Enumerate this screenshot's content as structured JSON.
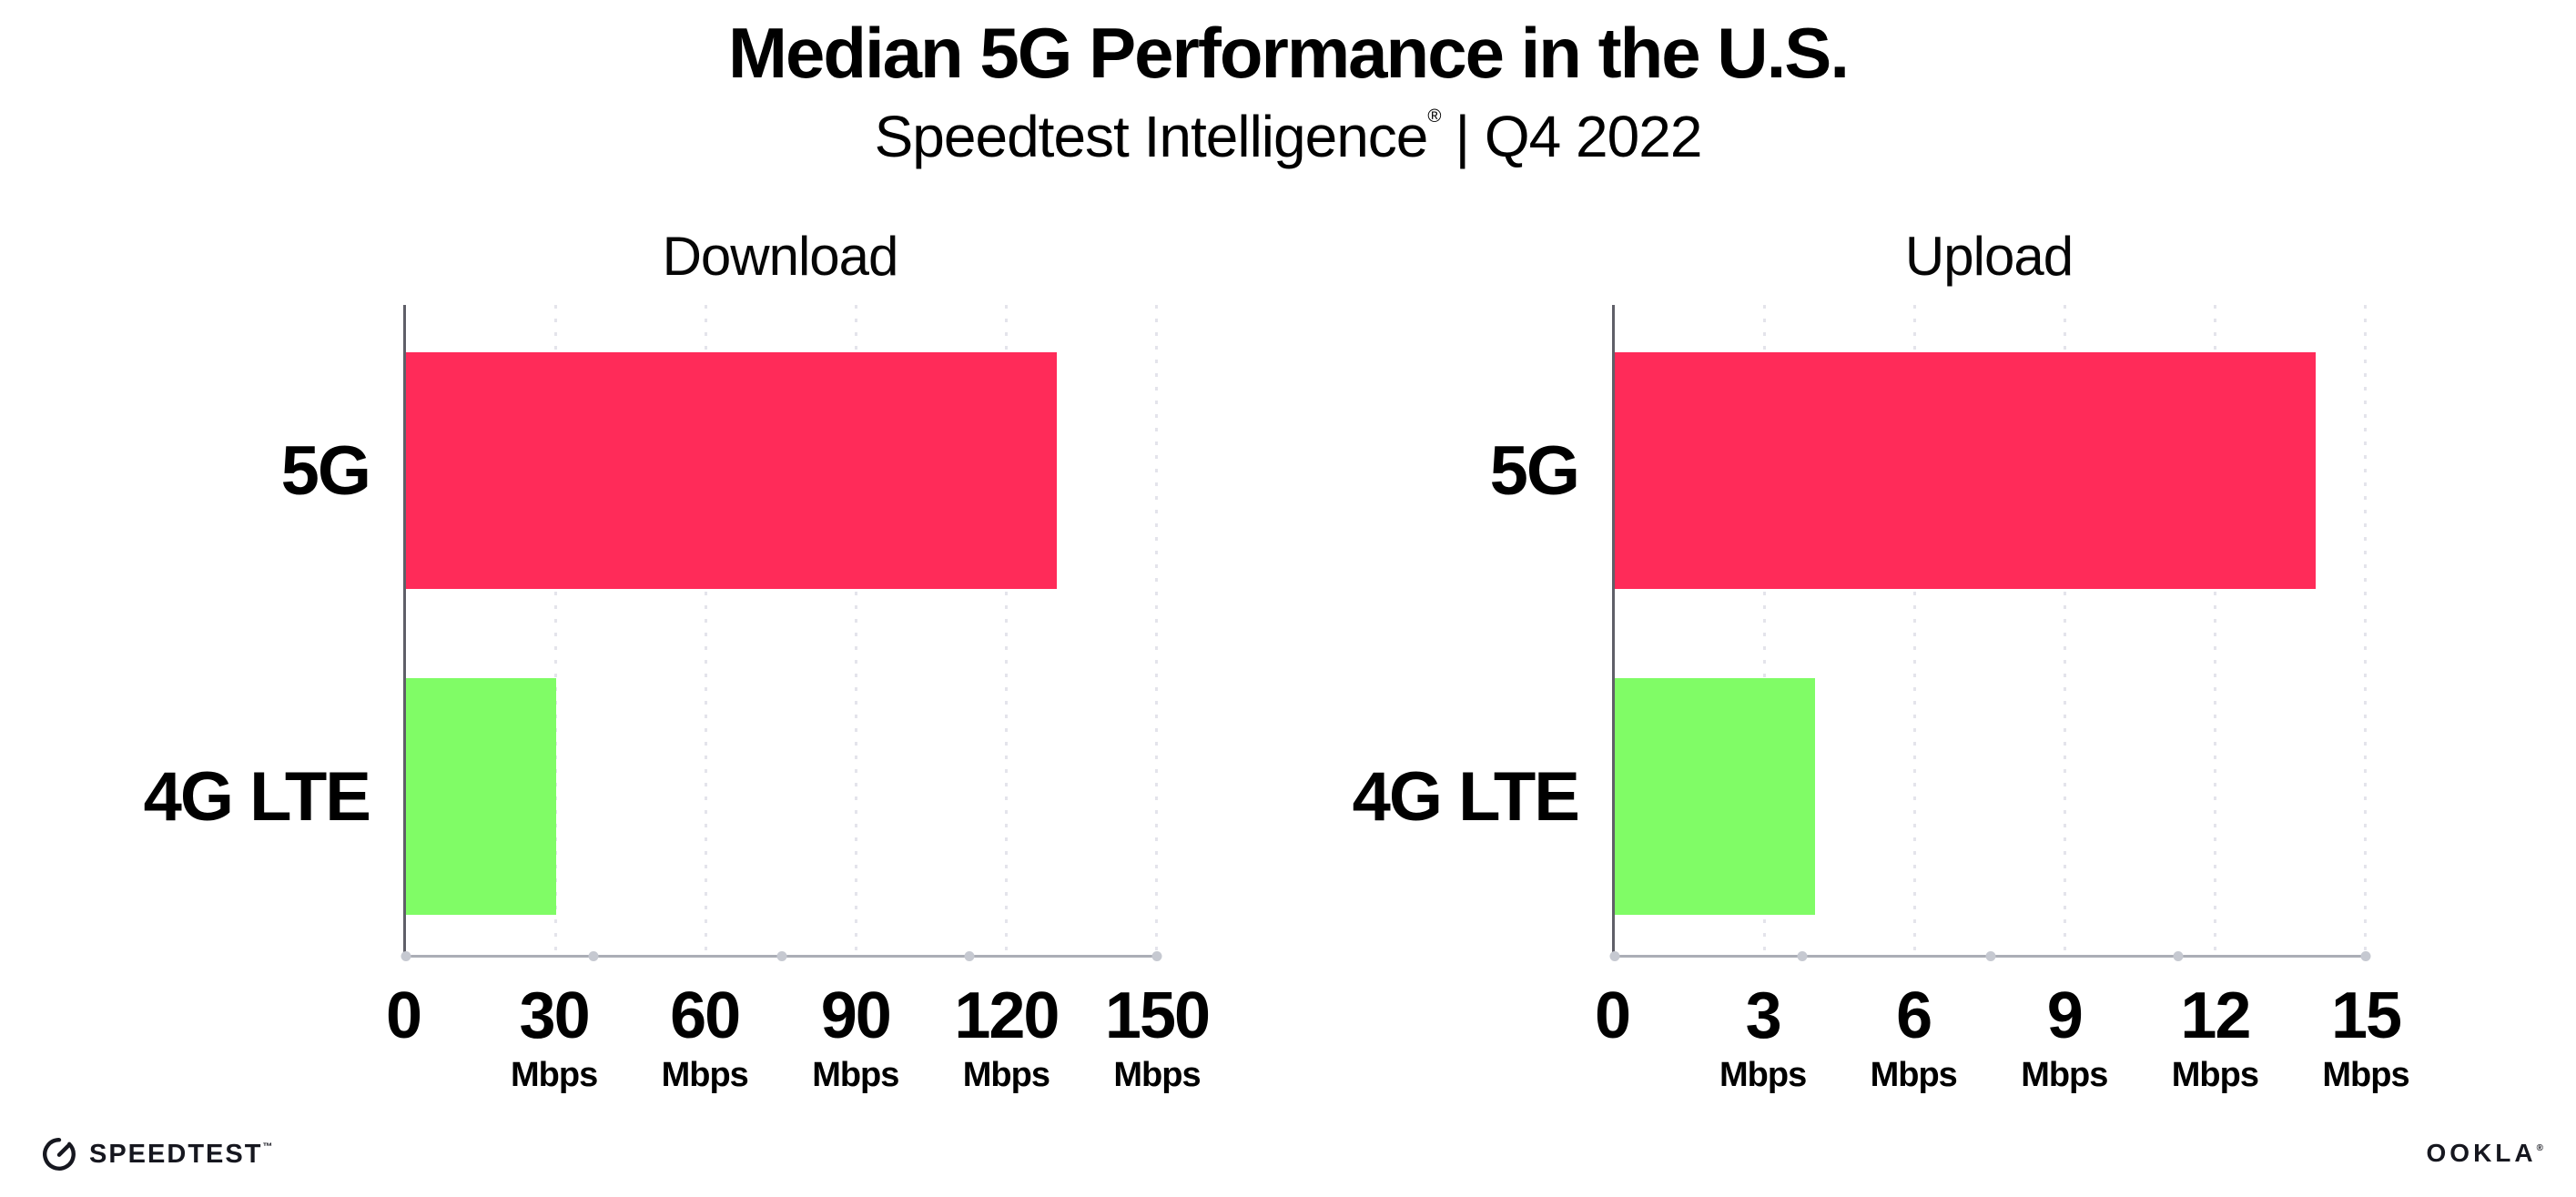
{
  "header": {
    "title": "Median 5G Performance in the U.S.",
    "subtitle_brand": "Speedtest Intelligence",
    "subtitle_mark": "®",
    "subtitle_rest": "| Q4 2022"
  },
  "chart_data": [
    {
      "type": "bar",
      "orientation": "horizontal",
      "title": "Download",
      "categories": [
        "5G",
        "4G LTE"
      ],
      "values": [
        130,
        30
      ],
      "unit": "Mbps",
      "xlim": [
        0,
        150
      ],
      "xticks": [
        0,
        30,
        60,
        90,
        120,
        150
      ],
      "tick_unit_label": "Mbps",
      "bar_colors": [
        "#FF2B59",
        "#80FC66"
      ],
      "grid": "vertical dotted gridlines at each labeled tick",
      "legend": "none"
    },
    {
      "type": "bar",
      "orientation": "horizontal",
      "title": "Upload",
      "categories": [
        "5G",
        "4G LTE"
      ],
      "values": [
        14,
        4
      ],
      "unit": "Mbps",
      "xlim": [
        0,
        15
      ],
      "xticks": [
        0,
        3,
        6,
        9,
        12,
        15
      ],
      "tick_unit_label": "Mbps",
      "bar_colors": [
        "#FF2B59",
        "#80FC66"
      ],
      "grid": "vertical dotted gridlines at each labeled tick",
      "legend": "none"
    }
  ],
  "footer": {
    "speedtest_label": "SPEEDTEST",
    "speedtest_mark": "™",
    "ookla_label": "OOKLA",
    "ookla_mark": "®"
  },
  "colors": {
    "bar_5g": "#FF2B59",
    "bar_4g_lte": "#80FC66",
    "y_axis": "#5F5F68",
    "x_axis": "#ABAEB6",
    "gridline": "#E4E4EB",
    "text": "#000000",
    "logo": "#16171F"
  }
}
